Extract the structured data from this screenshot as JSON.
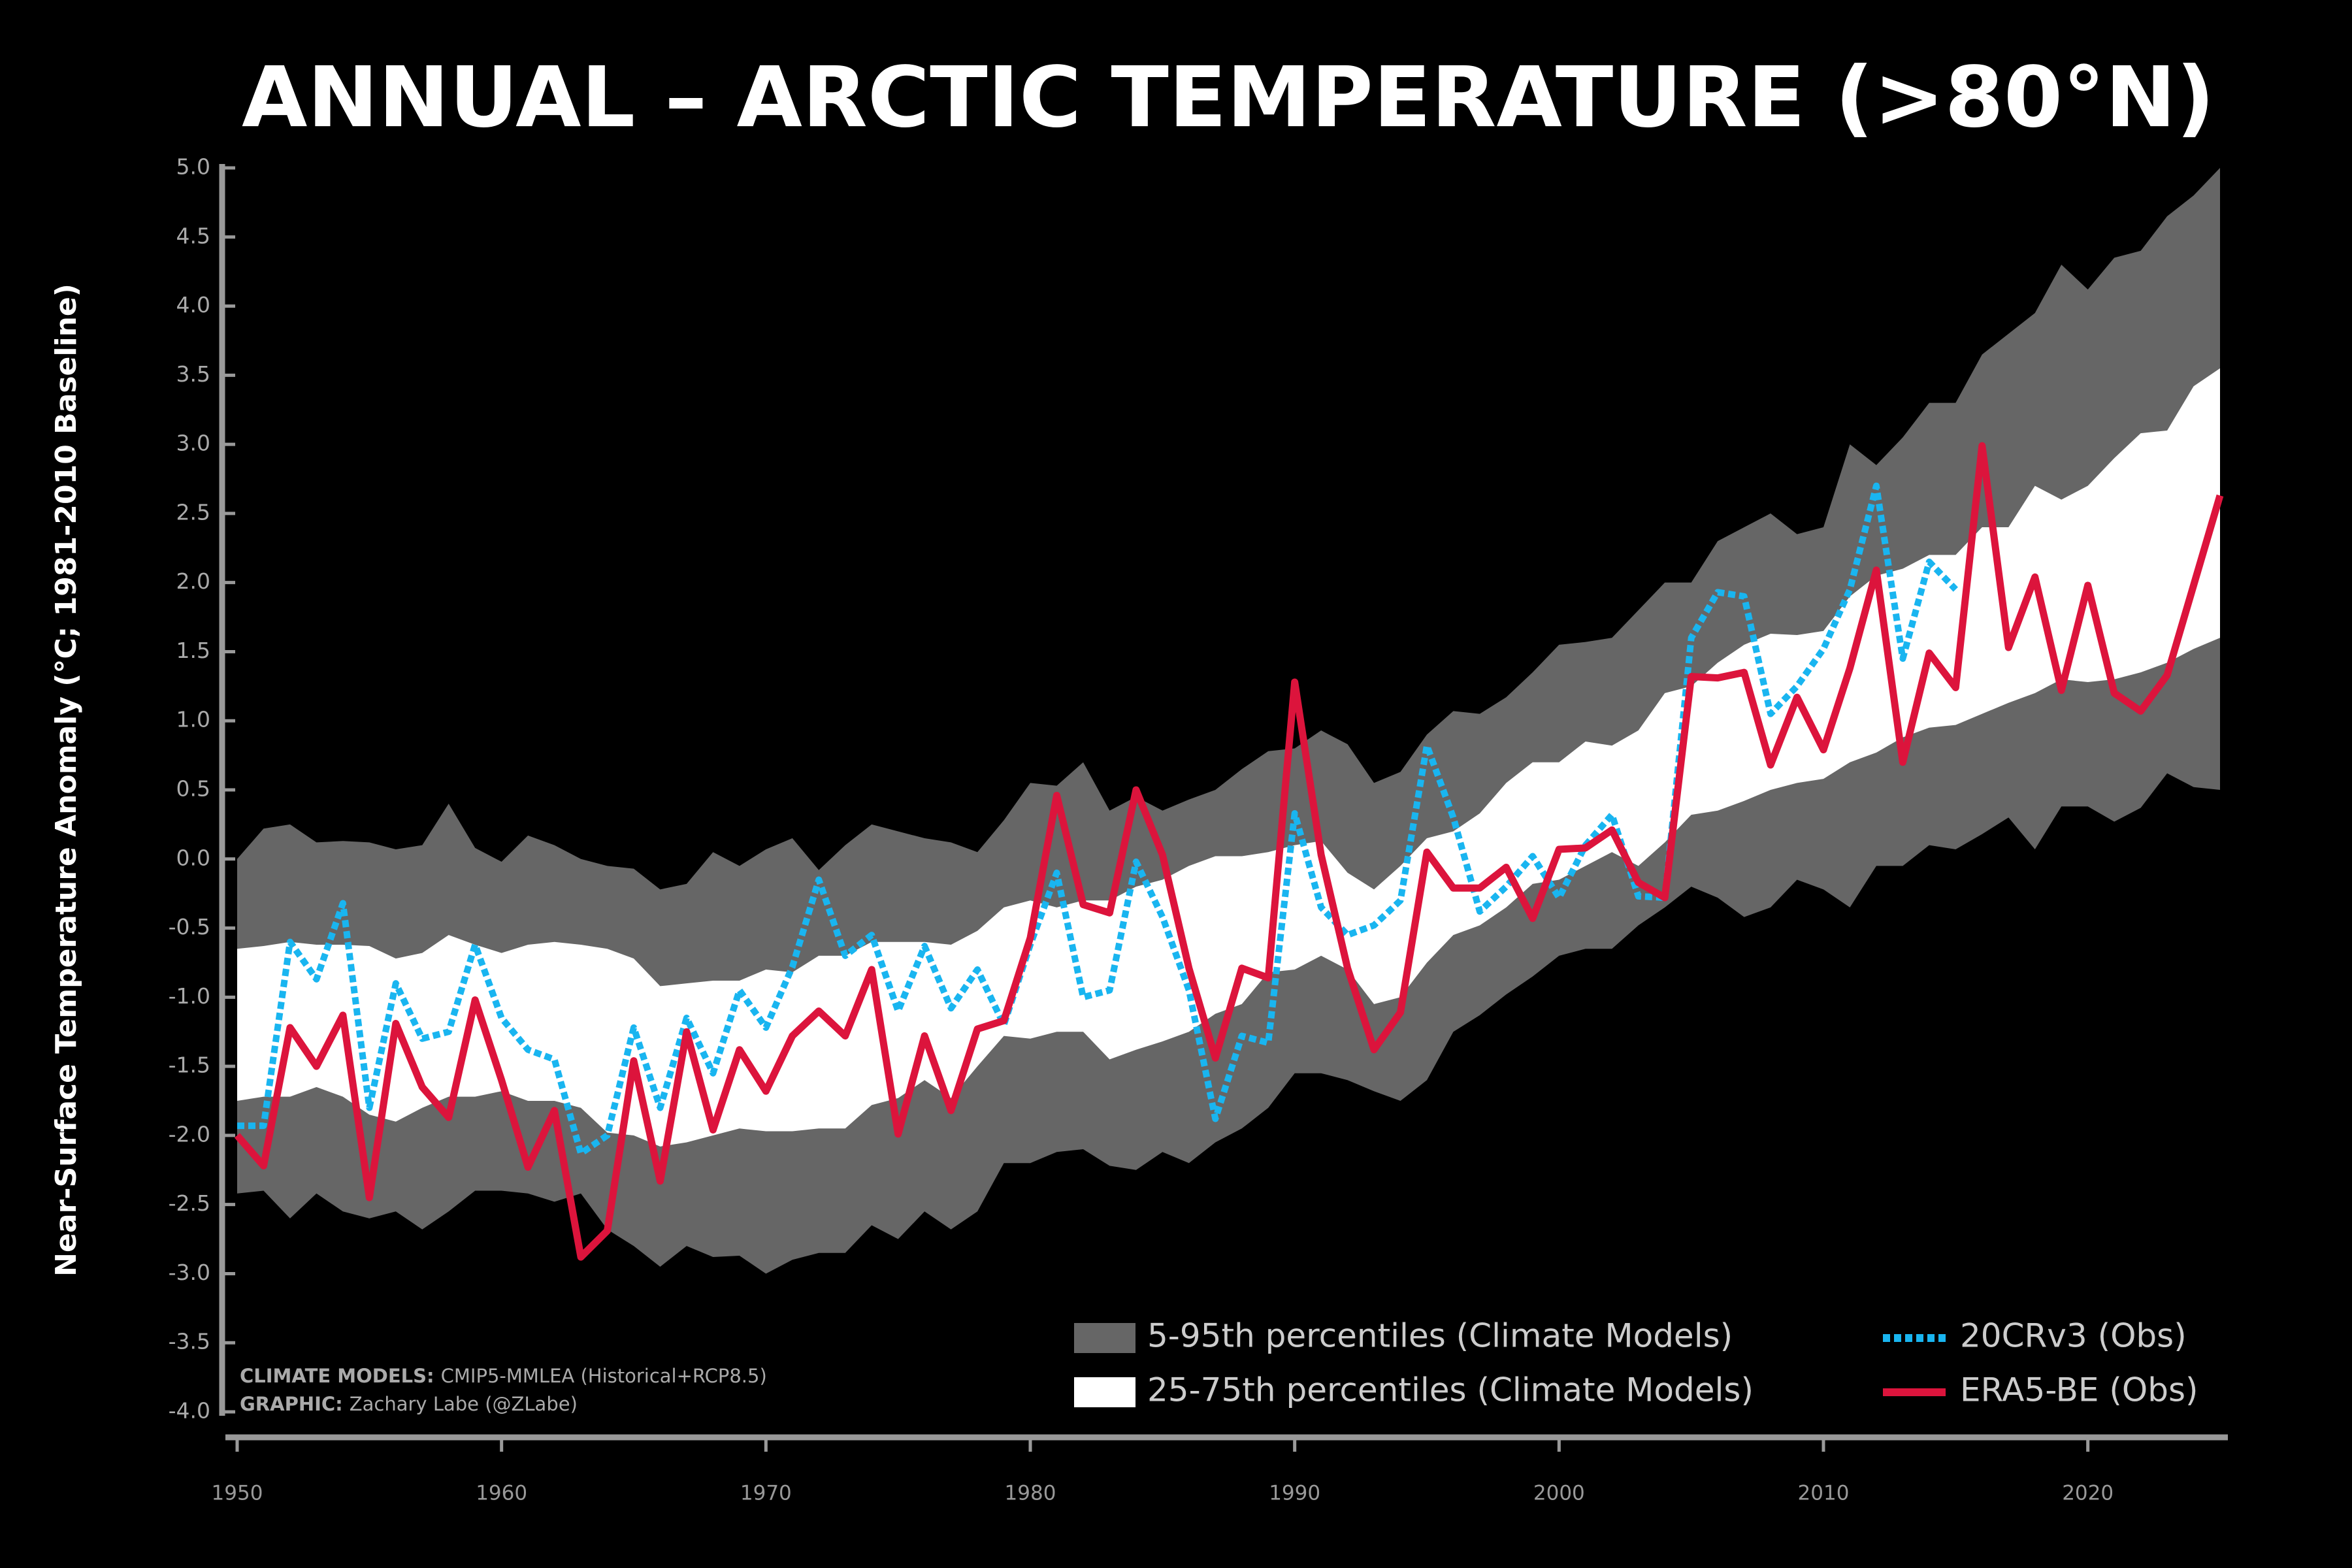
{
  "chart_data": {
    "type": "line",
    "title": "ANNUAL – ARCTIC TEMPERATURE (>80°N)",
    "ylabel": "Near-Surface Temperature Anomaly (°C; 1981-2010 Baseline)",
    "x": [
      1950,
      1951,
      1952,
      1953,
      1954,
      1955,
      1956,
      1957,
      1958,
      1959,
      1960,
      1961,
      1962,
      1963,
      1964,
      1965,
      1966,
      1967,
      1968,
      1969,
      1970,
      1971,
      1972,
      1973,
      1974,
      1975,
      1976,
      1977,
      1978,
      1979,
      1980,
      1981,
      1982,
      1983,
      1984,
      1985,
      1986,
      1987,
      1988,
      1989,
      1990,
      1991,
      1992,
      1993,
      1994,
      1995,
      1996,
      1997,
      1998,
      1999,
      2000,
      2001,
      2002,
      2003,
      2004,
      2005,
      2006,
      2007,
      2008,
      2009,
      2010,
      2011,
      2012,
      2013,
      2014,
      2015,
      2016,
      2017,
      2018,
      2019,
      2020,
      2021,
      2022,
      2023,
      2024,
      2025
    ],
    "xlim": [
      1950,
      2025
    ],
    "xticks": [
      1950,
      1960,
      1970,
      1980,
      1990,
      2000,
      2010,
      2020
    ],
    "ylim": [
      -4,
      5
    ],
    "yticks": [
      {
        "value": 5,
        "label": "5.0"
      },
      4.5,
      {
        "value": 4,
        "label": "4.0"
      },
      3.5,
      {
        "value": 3,
        "label": "3.0"
      },
      2.5,
      {
        "value": 2,
        "label": "2.0"
      },
      1.5,
      {
        "value": 1,
        "label": "1.0"
      },
      0.5,
      {
        "value": 0,
        "label": "0.0"
      },
      -0.5,
      {
        "value": -1,
        "label": "-1.0"
      },
      -1.5,
      {
        "value": -2,
        "label": "-2.0"
      },
      -2.5,
      {
        "value": -3,
        "label": "-3.0"
      },
      -3.5,
      {
        "value": -4,
        "label": "-4.0"
      }
    ],
    "bands": [
      {
        "name": "5-95th percentiles (Climate Models)",
        "color": "#666666",
        "upper": [
          0.0,
          0.22,
          0.25,
          0.12,
          0.13,
          0.12,
          0.07,
          0.1,
          0.4,
          0.08,
          -0.02,
          0.17,
          0.1,
          0.0,
          -0.05,
          -0.07,
          -0.22,
          -0.18,
          0.05,
          -0.05,
          0.07,
          0.15,
          -0.08,
          0.1,
          0.25,
          0.2,
          0.15,
          0.12,
          0.05,
          0.28,
          0.55,
          0.53,
          0.7,
          0.35,
          0.45,
          0.35,
          0.43,
          0.5,
          0.65,
          0.78,
          0.8,
          0.93,
          0.83,
          0.55,
          0.63,
          0.9,
          1.07,
          1.05,
          1.17,
          1.35,
          1.55,
          1.57,
          1.6,
          1.8,
          2.0,
          2.0,
          2.3,
          2.4,
          2.5,
          2.35,
          2.4,
          3.0,
          2.85,
          3.05,
          3.3,
          3.3,
          3.65,
          3.8,
          3.95,
          4.3,
          4.12,
          4.35,
          4.4,
          4.65,
          4.8,
          5.0
        ],
        "lower": [
          -2.42,
          -2.4,
          -2.6,
          -2.42,
          -2.55,
          -2.6,
          -2.55,
          -2.68,
          -2.55,
          -2.4,
          -2.4,
          -2.42,
          -2.48,
          -2.42,
          -2.68,
          -2.8,
          -2.95,
          -2.8,
          -2.88,
          -2.87,
          -3.0,
          -2.9,
          -2.85,
          -2.85,
          -2.65,
          -2.75,
          -2.55,
          -2.68,
          -2.55,
          -2.2,
          -2.2,
          -2.12,
          -2.1,
          -2.22,
          -2.25,
          -2.12,
          -2.2,
          -2.05,
          -1.95,
          -1.8,
          -1.55,
          -1.55,
          -1.6,
          -1.68,
          -1.75,
          -1.6,
          -1.25,
          -1.13,
          -0.98,
          -0.85,
          -0.7,
          -0.65,
          -0.65,
          -0.48,
          -0.35,
          -0.2,
          -0.28,
          -0.42,
          -0.35,
          -0.15,
          -0.22,
          -0.35,
          -0.05,
          -0.05,
          0.1,
          0.07,
          0.18,
          0.3,
          0.07,
          0.38,
          0.38,
          0.27,
          0.37,
          0.62,
          0.52,
          0.5
        ]
      },
      {
        "name": "25-75th percentiles (Climate Models)",
        "color": "#ffffff",
        "upper": [
          -0.65,
          -0.63,
          -0.6,
          -0.62,
          -0.62,
          -0.63,
          -0.72,
          -0.68,
          -0.55,
          -0.62,
          -0.68,
          -0.62,
          -0.6,
          -0.62,
          -0.65,
          -0.72,
          -0.92,
          -0.9,
          -0.88,
          -0.88,
          -0.8,
          -0.82,
          -0.7,
          -0.7,
          -0.6,
          -0.6,
          -0.6,
          -0.62,
          -0.52,
          -0.35,
          -0.3,
          -0.35,
          -0.3,
          -0.3,
          -0.2,
          -0.15,
          -0.05,
          0.02,
          0.02,
          0.05,
          0.1,
          0.13,
          -0.1,
          -0.22,
          -0.05,
          0.15,
          0.2,
          0.33,
          0.55,
          0.7,
          0.7,
          0.85,
          0.82,
          0.93,
          1.2,
          1.25,
          1.42,
          1.55,
          1.63,
          1.62,
          1.65,
          1.9,
          2.05,
          2.1,
          2.2,
          2.2,
          2.4,
          2.4,
          2.7,
          2.6,
          2.7,
          2.9,
          3.08,
          3.1,
          3.42,
          3.55
        ],
        "lower": [
          -1.75,
          -1.72,
          -1.72,
          -1.65,
          -1.72,
          -1.85,
          -1.9,
          -1.8,
          -1.72,
          -1.72,
          -1.68,
          -1.75,
          -1.75,
          -1.8,
          -1.98,
          -2.0,
          -2.08,
          -2.05,
          -2.0,
          -1.95,
          -1.97,
          -1.97,
          -1.95,
          -1.95,
          -1.78,
          -1.73,
          -1.6,
          -1.73,
          -1.5,
          -1.28,
          -1.3,
          -1.25,
          -1.25,
          -1.45,
          -1.38,
          -1.32,
          -1.25,
          -1.12,
          -1.05,
          -0.82,
          -0.8,
          -0.7,
          -0.8,
          -1.05,
          -1.0,
          -0.75,
          -0.55,
          -0.48,
          -0.35,
          -0.18,
          -0.15,
          -0.05,
          0.05,
          -0.05,
          0.12,
          0.32,
          0.35,
          0.42,
          0.5,
          0.55,
          0.58,
          0.7,
          0.77,
          0.88,
          0.95,
          0.97,
          1.05,
          1.13,
          1.2,
          1.3,
          1.28,
          1.3,
          1.35,
          1.42,
          1.52,
          1.6
        ]
      }
    ],
    "series": [
      {
        "name": "20CRv3 (Obs)",
        "color": "#19b5f0",
        "dashed": true,
        "values": [
          -1.93,
          -1.93,
          -0.6,
          -0.87,
          -0.32,
          -1.8,
          -0.9,
          -1.3,
          -1.25,
          -0.62,
          -1.15,
          -1.38,
          -1.45,
          -2.13,
          -2.0,
          -1.22,
          -1.8,
          -1.15,
          -1.55,
          -0.95,
          -1.22,
          -0.78,
          -0.15,
          -0.7,
          -0.55,
          -1.1,
          -0.63,
          -1.08,
          -0.8,
          -1.2,
          -0.62,
          -0.1,
          -1.0,
          -0.95,
          -0.02,
          -0.42,
          -0.95,
          -1.88,
          -1.28,
          -1.33,
          0.33,
          -0.35,
          -0.55,
          -0.48,
          -0.3,
          0.82,
          0.3,
          -0.38,
          -0.2,
          0.02,
          -0.28,
          0.1,
          0.32,
          -0.27,
          -0.28,
          1.6,
          1.93,
          1.9,
          1.05,
          1.25,
          1.52,
          1.95,
          2.7,
          1.45,
          2.15,
          1.95,
          null,
          null,
          null,
          null,
          null,
          null,
          null,
          null,
          null,
          null
        ]
      },
      {
        "name": "ERA5-BE (Obs)",
        "color": "#dc143c",
        "dashed": false,
        "values": [
          -2.0,
          -2.22,
          -1.22,
          -1.5,
          -1.13,
          -2.45,
          -1.19,
          -1.65,
          -1.87,
          -1.02,
          -1.6,
          -2.23,
          -1.82,
          -2.88,
          -2.69,
          -1.46,
          -2.33,
          -1.25,
          -1.96,
          -1.38,
          -1.68,
          -1.28,
          -1.1,
          -1.28,
          -0.8,
          -1.99,
          -1.28,
          -1.82,
          -1.23,
          -1.17,
          -0.57,
          0.46,
          -0.33,
          -0.39,
          0.5,
          0.03,
          -0.79,
          -1.44,
          -0.79,
          -0.86,
          1.28,
          0.03,
          -0.79,
          -1.38,
          -1.11,
          0.05,
          -0.21,
          -0.21,
          -0.06,
          -0.43,
          0.07,
          0.08,
          0.21,
          -0.17,
          -0.28,
          1.32,
          1.31,
          1.35,
          0.68,
          1.17,
          0.79,
          1.38,
          2.09,
          0.7,
          1.49,
          1.24,
          2.99,
          1.53,
          2.04,
          1.22,
          1.98,
          1.2,
          1.07,
          1.33,
          1.98,
          2.63
        ]
      }
    ],
    "credits": [
      {
        "label": "CLIMATE MODELS:",
        "text": "CMIP5-MMLEA (Historical+RCP8.5)"
      },
      {
        "label": "GRAPHIC:",
        "text": "Zachary Labe (@ZLabe)"
      }
    ]
  }
}
